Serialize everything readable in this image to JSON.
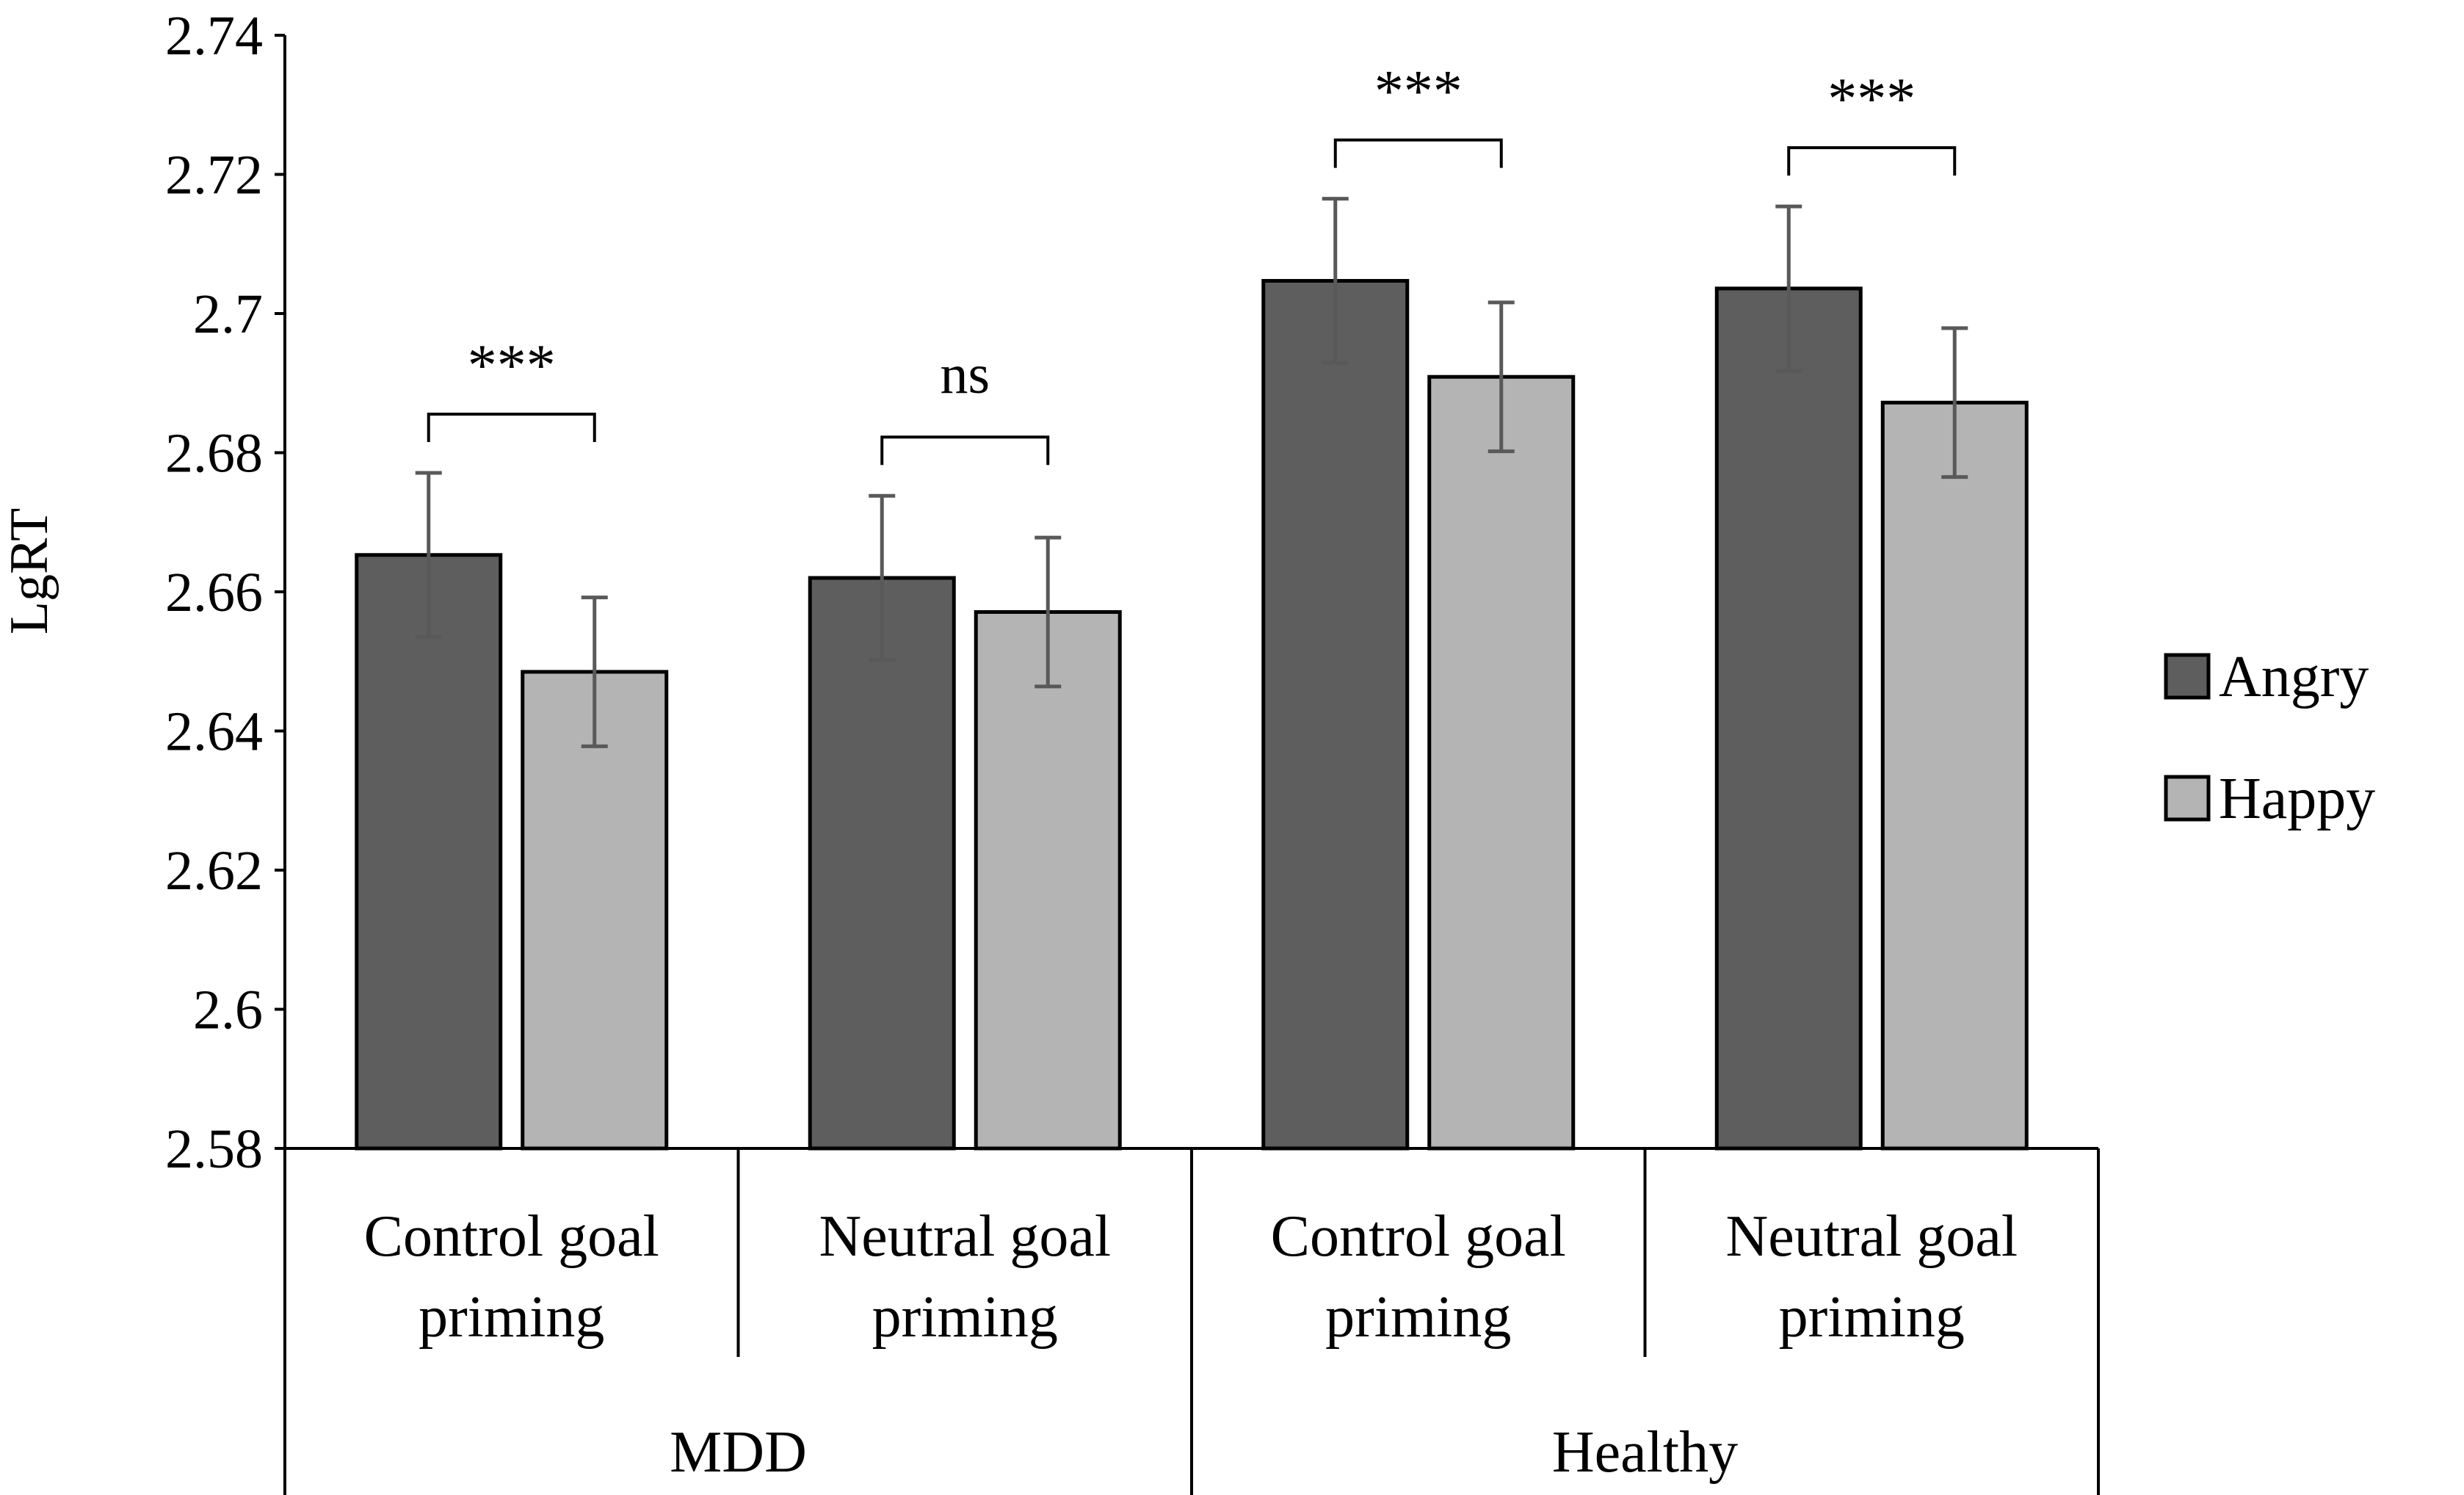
{
  "chart_data": {
    "type": "bar",
    "title": "",
    "xlabel": "",
    "ylabel": "LgRT",
    "ylim": [
      2.58,
      2.74
    ],
    "yticks": [
      2.58,
      2.6,
      2.62,
      2.64,
      2.66,
      2.68,
      2.7,
      2.72,
      2.74
    ],
    "ytick_labels": [
      "2.58",
      "2.6",
      "2.62",
      "2.64",
      "2.66",
      "2.68",
      "2.7",
      "2.72",
      "2.74"
    ],
    "grid": false,
    "legend_position": "right",
    "categories": [
      "Control goal priming",
      "Neutral goal priming",
      "Control goal priming",
      "Neutral goal priming"
    ],
    "category_labels": [
      [
        "Control goal",
        "priming"
      ],
      [
        "Neutral goal",
        "priming"
      ],
      [
        "Control goal",
        "priming"
      ],
      [
        "Neutral goal",
        "priming"
      ]
    ],
    "groups": [
      {
        "label": "MDD",
        "category_indices": [
          0,
          1
        ]
      },
      {
        "label": "Healthy",
        "category_indices": [
          2,
          3
        ]
      }
    ],
    "series": [
      {
        "name": "Angry",
        "color": "#5e5e5e",
        "values": [
          2.6653,
          2.662,
          2.7047,
          2.7036
        ],
        "errors": [
          0.0118,
          0.0118,
          0.0118,
          0.0118
        ]
      },
      {
        "name": "Happy",
        "color": "#b4b4b4",
        "values": [
          2.6485,
          2.6571,
          2.6909,
          2.6872
        ],
        "errors": [
          0.0107,
          0.0107,
          0.0107,
          0.0107
        ]
      }
    ],
    "annotations": [
      {
        "category_index": 0,
        "text": "***"
      },
      {
        "category_index": 1,
        "text": "ns"
      },
      {
        "category_index": 2,
        "text": "***"
      },
      {
        "category_index": 3,
        "text": "***"
      }
    ]
  }
}
